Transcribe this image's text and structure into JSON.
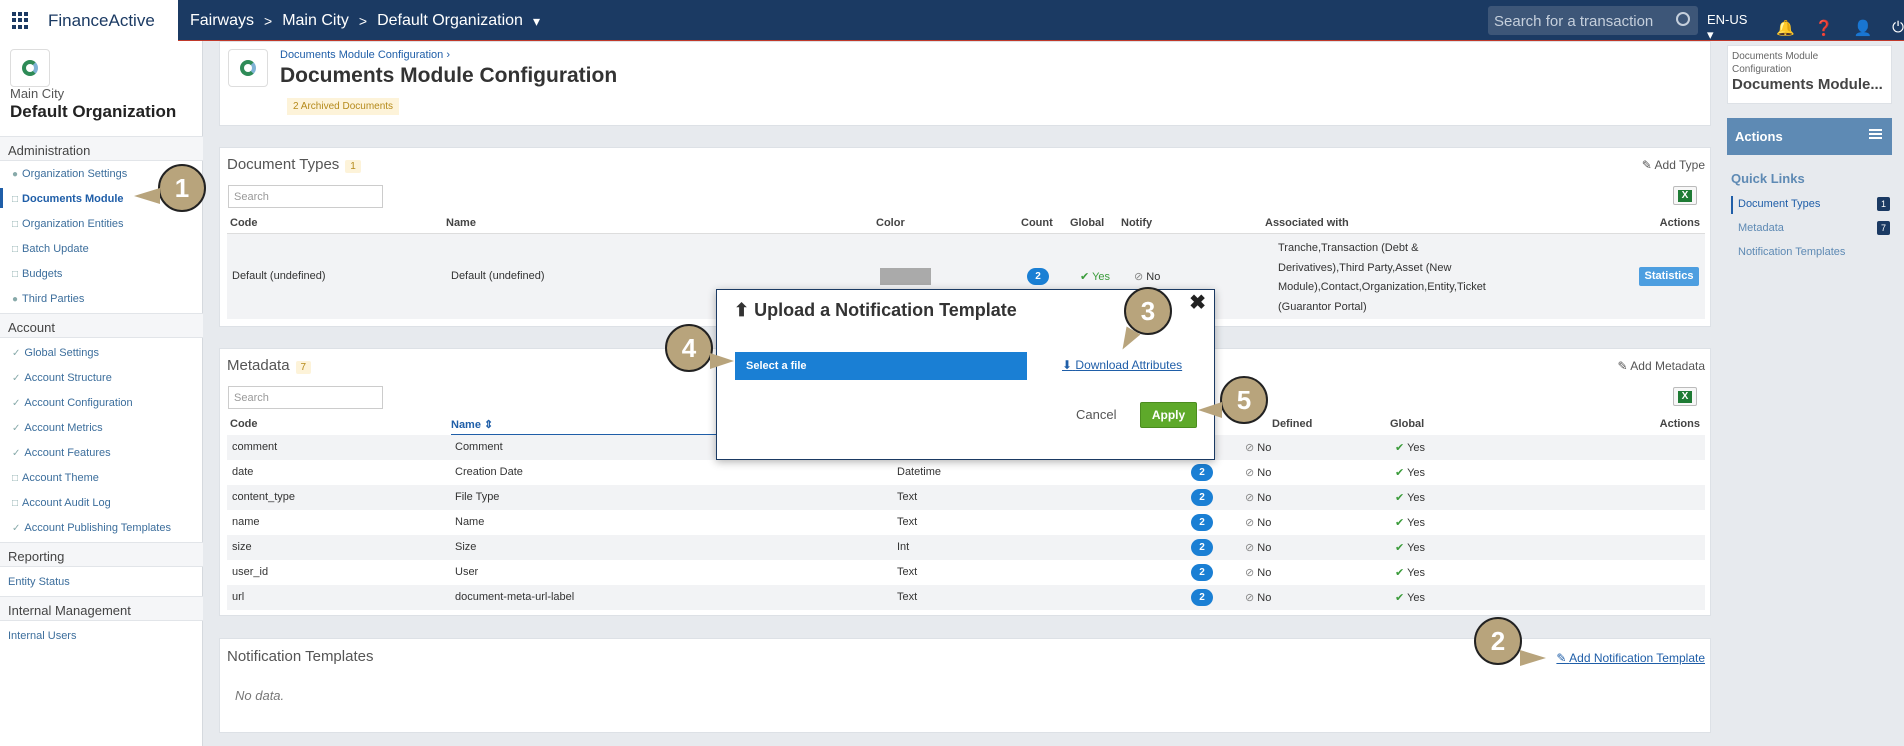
{
  "header": {
    "logo": "FinanceActive",
    "breadcrumb": [
      "Fairways",
      "Main City",
      "Default Organization"
    ],
    "search_placeholder": "Search for a transaction",
    "language": "EN-US"
  },
  "sidebar": {
    "city": "Main City",
    "org": "Default Organization",
    "sections": [
      {
        "title": "Administration",
        "items": [
          "Organization Settings",
          "Documents Module",
          "Organization Entities",
          "Batch Update",
          "Budgets",
          "Third Parties"
        ]
      },
      {
        "title": "Account",
        "items": [
          "Global Settings",
          "Account Structure",
          "Account Configuration",
          "Account Metrics",
          "Account Features",
          "Account Theme",
          "Account Audit Log",
          "Account Publishing Templates"
        ]
      },
      {
        "title": "Reporting",
        "items": [
          "Entity Status"
        ]
      },
      {
        "title": "Internal Management",
        "items": [
          "Internal Users"
        ]
      }
    ]
  },
  "page": {
    "breadcrumb": "Documents Module Configuration",
    "title": "Documents Module Configuration",
    "archived_badge": "2 Archived Documents"
  },
  "doc_types": {
    "title": "Document Types",
    "count": "1",
    "add_label": "Add Type",
    "search_placeholder": "Search",
    "columns": [
      "Code",
      "Name",
      "Color",
      "Count",
      "Global",
      "Notify",
      "Associated with",
      "Actions"
    ],
    "row": {
      "code": "Default (undefined)",
      "name": "Default (undefined)",
      "color": "#aaaaaa",
      "count": "2",
      "global": "Yes",
      "notify": "No",
      "assoc": [
        "Tranche,Transaction (Debt &",
        "Derivatives),Third Party,Asset (New",
        "Module),Contact,Organization,Entity,Ticket",
        "(Guarantor Portal)"
      ],
      "action": "Statistics"
    }
  },
  "metadata": {
    "title": "Metadata",
    "count": "7",
    "add_label": "Add Metadata",
    "search_placeholder": "Search",
    "col_code": "Code",
    "col_name": "Name",
    "col_defined": "Defined",
    "col_global": "Global",
    "col_actions": "Actions",
    "rows": [
      {
        "code": "comment",
        "name": "Comment",
        "type": "",
        "count": "",
        "defined": "No",
        "global": "Yes"
      },
      {
        "code": "date",
        "name": "Creation Date",
        "type": "Datetime",
        "count": "2",
        "defined": "No",
        "global": "Yes"
      },
      {
        "code": "content_type",
        "name": "File Type",
        "type": "Text",
        "count": "2",
        "defined": "No",
        "global": "Yes"
      },
      {
        "code": "name",
        "name": "Name",
        "type": "Text",
        "count": "2",
        "defined": "No",
        "global": "Yes"
      },
      {
        "code": "size",
        "name": "Size",
        "type": "Int",
        "count": "2",
        "defined": "No",
        "global": "Yes"
      },
      {
        "code": "user_id",
        "name": "User",
        "type": "Text",
        "count": "2",
        "defined": "No",
        "global": "Yes"
      },
      {
        "code": "url",
        "name": "document-meta-url-label",
        "type": "Text",
        "count": "2",
        "defined": "No",
        "global": "Yes"
      }
    ]
  },
  "notif": {
    "title": "Notification Templates",
    "add_label": "Add Notification Template",
    "empty": "No data."
  },
  "modal": {
    "title": "Upload a Notification Template",
    "select_file": "Select a file",
    "download": "Download Attributes",
    "cancel": "Cancel",
    "apply": "Apply"
  },
  "right": {
    "crumb_l1": "Documents Module",
    "crumb_l2": "Configuration",
    "title": "Documents Module...",
    "actions": "Actions",
    "quick_links": "Quick Links",
    "links": [
      {
        "label": "Document Types",
        "badge": "1"
      },
      {
        "label": "Metadata",
        "badge": "7"
      },
      {
        "label": "Notification Templates",
        "badge": ""
      }
    ]
  },
  "callouts": [
    "1",
    "2",
    "3",
    "4",
    "5"
  ]
}
